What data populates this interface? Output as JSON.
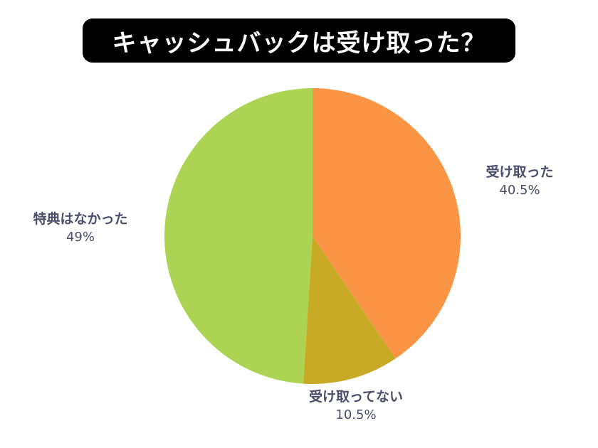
{
  "chart_data": {
    "type": "pie",
    "title": "キャッシュバックは受け取った？",
    "categories": [
      "受け取った",
      "受け取ってない",
      "特典はなかった"
    ],
    "values": [
      40.5,
      10.5,
      49
    ],
    "value_labels": [
      "40.5%",
      "10.5%",
      "49%"
    ],
    "colors": [
      "#fb9445",
      "#c9aa26",
      "#add352"
    ],
    "legend": "none"
  }
}
